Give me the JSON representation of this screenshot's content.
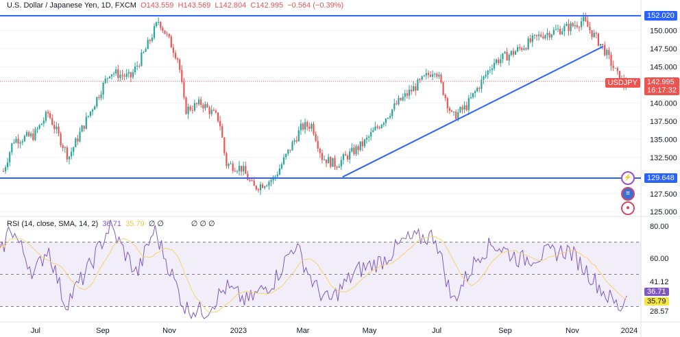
{
  "header": {
    "title": "U.S. Dollar / Japanese Yen, 1D, FXCM",
    "open": "O143.559",
    "high": "H143.569",
    "low": "L142.804",
    "close": "C142.995",
    "change": "−0.564 (−0.39%)"
  },
  "rsi_legend": {
    "label": "RSI (14, close, SMA, 14, 2)",
    "rsi": "36.71",
    "sma": "35.79",
    "empty": "∅ ∅",
    "empty2": "∅ ∅ ∅"
  },
  "price_tag": {
    "symbol": "USDJPY",
    "price": "142.995",
    "countdown": "16:17:32"
  },
  "line_tags": {
    "upper": "152.020",
    "lower": "129.648"
  },
  "rsi_tags": {
    "rsi": "36.71",
    "sma": "35.79",
    "upper": "41.12",
    "lower": "28.57"
  },
  "colors": {
    "up": "#26a69a",
    "down": "#ef5350",
    "line": "#2962ff",
    "rsi": "#7e57c2",
    "sma": "#f5d36b"
  },
  "chart_data": [
    {
      "type": "candlestick",
      "title": "U.S. Dollar / Japanese Yen, 1D, FXCM",
      "ylim": [
        124.5,
        153.6
      ],
      "y_ticks": [
        125,
        127.5,
        130,
        132.5,
        135,
        137.5,
        140,
        142.5,
        145,
        147.5,
        150
      ],
      "x_ticks": [
        {
          "label": "Jul",
          "m": 1.06
        },
        {
          "label": "Sep",
          "m": 3.06
        },
        {
          "label": "Nov",
          "m": 5.04
        },
        {
          "label": "2023",
          "m": 7.1
        },
        {
          "label": "Mar",
          "m": 9.02
        },
        {
          "label": "May",
          "m": 11.0
        },
        {
          "label": "Jul",
          "m": 13.0
        },
        {
          "label": "Sep",
          "m": 15.04
        },
        {
          "label": "Nov",
          "m": 17.04
        },
        {
          "label": "2024",
          "m": 18.98
        }
      ],
      "x_unit": "months since 2022-06-01",
      "path": [
        [
          0.1,
          130.6
        ],
        [
          0.4,
          134.9
        ],
        [
          1.0,
          135.5
        ],
        [
          1.43,
          138.6
        ],
        [
          2.04,
          132.5
        ],
        [
          2.5,
          137
        ],
        [
          3.27,
          144.3
        ],
        [
          3.88,
          143.5
        ],
        [
          4.3,
          147
        ],
        [
          4.59,
          150.0
        ],
        [
          4.73,
          151.4
        ],
        [
          5.1,
          148
        ],
        [
          5.31,
          146
        ],
        [
          5.51,
          139
        ],
        [
          6.0,
          140
        ],
        [
          6.53,
          137.7
        ],
        [
          6.73,
          131.6
        ],
        [
          7.2,
          131
        ],
        [
          7.55,
          128.3
        ],
        [
          8.16,
          129.6
        ],
        [
          8.98,
          136.7
        ],
        [
          9.29,
          137
        ],
        [
          9.59,
          132.5
        ],
        [
          10.0,
          131.5
        ],
        [
          10.82,
          134.4
        ],
        [
          11.84,
          140
        ],
        [
          12.96,
          144.8
        ],
        [
          13.47,
          138
        ],
        [
          13.88,
          139.5
        ],
        [
          14.69,
          145.6
        ],
        [
          15.3,
          147
        ],
        [
          16.12,
          149.4
        ],
        [
          17.04,
          150.6
        ],
        [
          17.35,
          151.4
        ],
        [
          17.96,
          147.6
        ],
        [
          18.37,
          143.9
        ],
        [
          18.57,
          142.5
        ],
        [
          18.67,
          142.995
        ]
      ],
      "hlines": [
        152.02,
        129.648
      ],
      "trendline": [
        [
          10.2,
          129.8
        ],
        [
          17.96,
          147.8
        ]
      ],
      "last_price": 142.995
    },
    {
      "type": "line",
      "title": "RSI (14, close, SMA, 14, 2)",
      "ylim": [
        25,
        84.5
      ],
      "bands": [
        70,
        50,
        30
      ],
      "y_ticks": [
        60,
        80
      ],
      "series": [
        {
          "name": "RSI",
          "last": 36.71
        },
        {
          "name": "SMA",
          "last": 35.79
        }
      ],
      "path": [
        [
          0,
          61
        ],
        [
          0.31,
          80
        ],
        [
          1.02,
          50
        ],
        [
          1.43,
          67
        ],
        [
          1.94,
          31
        ],
        [
          2.65,
          54
        ],
        [
          3.27,
          80
        ],
        [
          4.08,
          50
        ],
        [
          4.59,
          78
        ],
        [
          5.51,
          29
        ],
        [
          6.12,
          27
        ],
        [
          6.73,
          42
        ],
        [
          7.35,
          33
        ],
        [
          8.16,
          46
        ],
        [
          8.78,
          69
        ],
        [
          9.39,
          42
        ],
        [
          9.8,
          33
        ],
        [
          10.61,
          52
        ],
        [
          11.43,
          59
        ],
        [
          12.04,
          71
        ],
        [
          12.96,
          74
        ],
        [
          13.47,
          33
        ],
        [
          14.29,
          63
        ],
        [
          14.69,
          69
        ],
        [
          15.51,
          59
        ],
        [
          16.33,
          63
        ],
        [
          16.94,
          65
        ],
        [
          17.55,
          50
        ],
        [
          18.06,
          37
        ],
        [
          18.47,
          29
        ],
        [
          18.67,
          36.71
        ]
      ]
    }
  ]
}
